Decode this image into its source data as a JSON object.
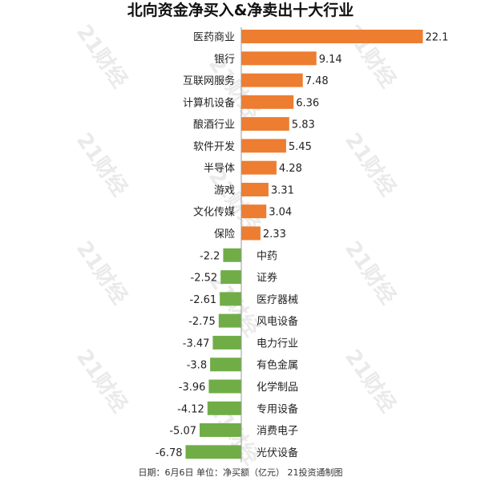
{
  "chart_data": {
    "type": "bar",
    "orientation": "horizontal",
    "title": "北向资金净买入&净卖出十大行业",
    "categories": [
      "医药商业",
      "银行",
      "互联网服务",
      "计算机设备",
      "酿酒行业",
      "软件开发",
      "半导体",
      "游戏",
      "文化传媒",
      "保险",
      "中药",
      "证券",
      "医疗器械",
      "风电设备",
      "电力行业",
      "有色金属",
      "化学制品",
      "专用设备",
      "消费电子",
      "光伏设备"
    ],
    "values": [
      22.1,
      9.14,
      7.48,
      6.36,
      5.83,
      5.45,
      4.28,
      3.31,
      3.04,
      2.33,
      -2.2,
      -2.52,
      -2.61,
      -2.75,
      -3.47,
      -3.8,
      -3.96,
      -4.12,
      -5.07,
      -6.78
    ],
    "value_labels": [
      "22.1",
      "9.14",
      "7.48",
      "6.36",
      "5.83",
      "5.45",
      "4.28",
      "3.31",
      "3.04",
      "2.33",
      "-2.2",
      "-2.52",
      "-2.61",
      "-2.75",
      "-3.47",
      "-3.8",
      "-3.96",
      "-4.12",
      "-5.07",
      "-6.78"
    ],
    "colors": {
      "positive": "#ed7d31",
      "negative": "#70ad47",
      "axis": "#999999"
    },
    "xlabel": "",
    "ylabel": "",
    "legend": "none",
    "grid": false
  },
  "footer": "日期：6月6日 单位：净买额（亿元） 21投资通制图",
  "watermark": "21财经"
}
